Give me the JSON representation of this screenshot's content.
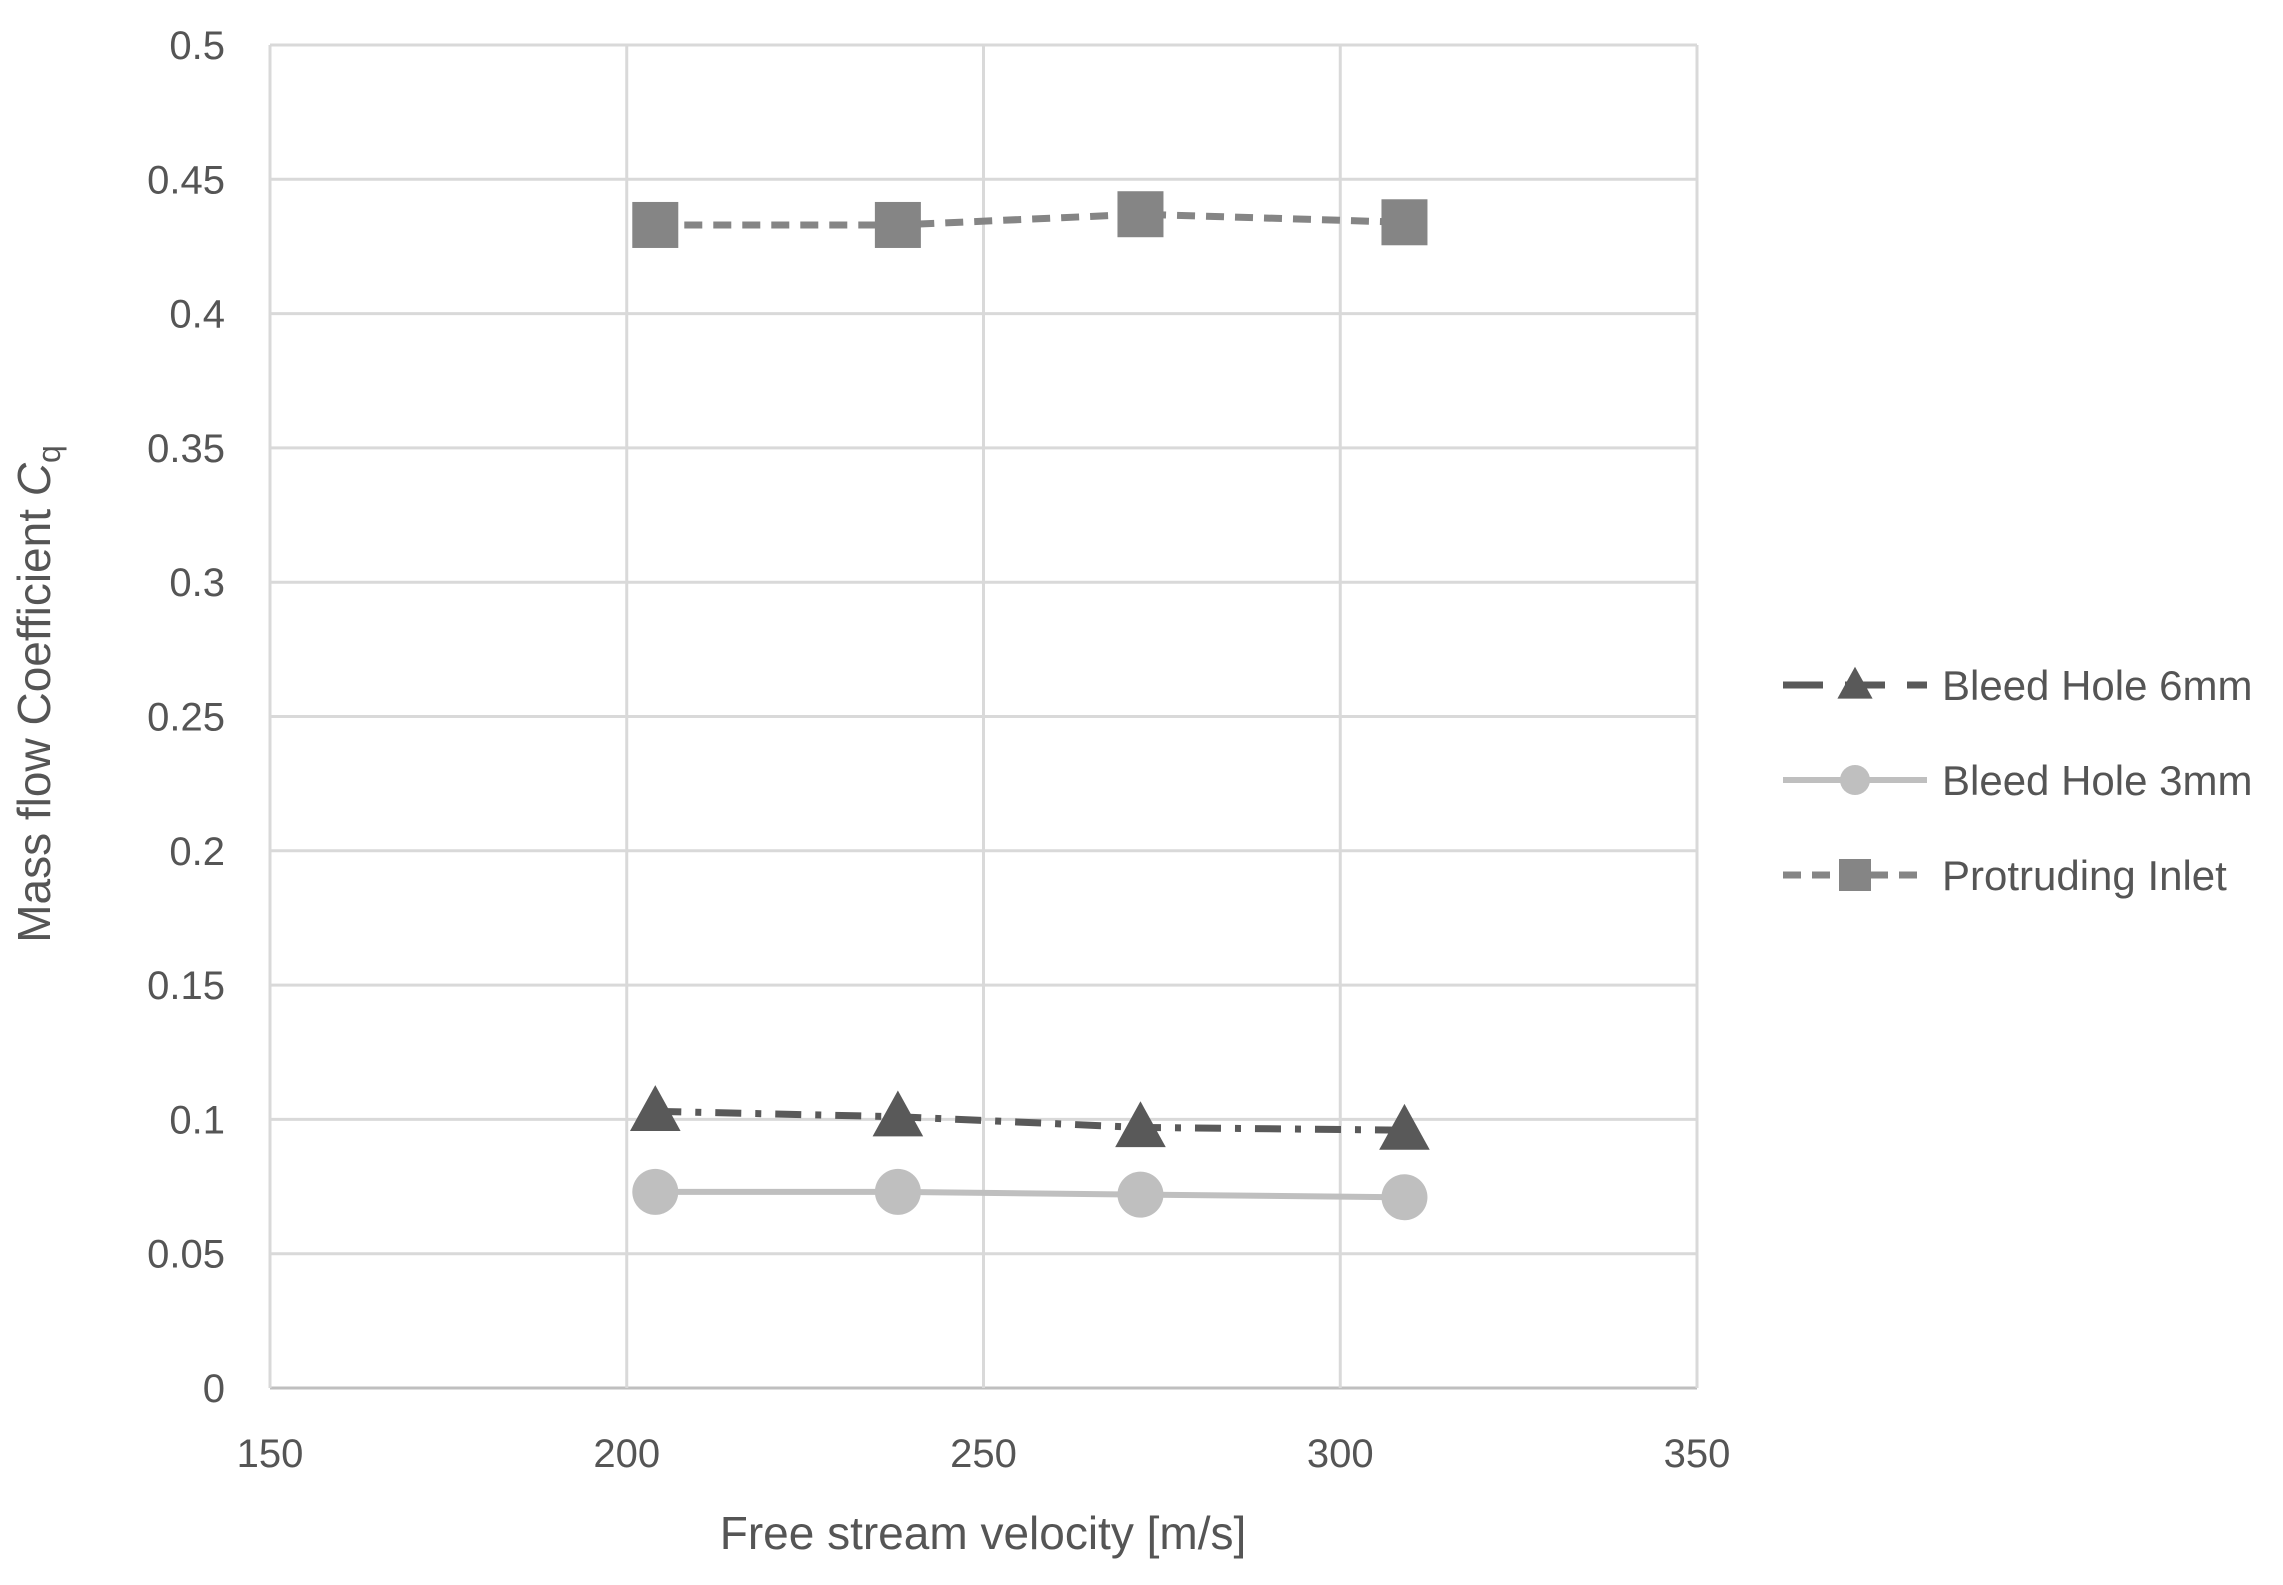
{
  "chart_data": {
    "type": "line",
    "title": "",
    "xlabel": "Free stream velocity [m/s]",
    "ylabel_prefix": "Mass flow Coefficient ",
    "ylabel_symbol": "C",
    "ylabel_subscript": "q",
    "xlim": [
      150,
      350
    ],
    "ylim": [
      0,
      0.5
    ],
    "xticks": [
      150,
      200,
      250,
      300,
      350
    ],
    "xtick_labels": [
      "150",
      "200",
      "250",
      "300",
      "350"
    ],
    "yticks": [
      0,
      0.05,
      0.1,
      0.15,
      0.2,
      0.25,
      0.3,
      0.35,
      0.4,
      0.45,
      0.5
    ],
    "ytick_labels": [
      "0",
      "0.05",
      "0.1",
      "0.15",
      "0.2",
      "0.25",
      "0.3",
      "0.35",
      "0.4",
      "0.45",
      "0.5"
    ],
    "grid": true,
    "legend_position": "right",
    "series": [
      {
        "name": "Bleed Hole 6mm",
        "x": [
          204,
          238,
          272,
          309
        ],
        "y": [
          0.103,
          0.101,
          0.097,
          0.096
        ],
        "marker": "triangle",
        "line_style": "dash-dot",
        "color": "#595959"
      },
      {
        "name": "Bleed Hole 3mm",
        "x": [
          204,
          238,
          272,
          309
        ],
        "y": [
          0.073,
          0.073,
          0.072,
          0.071
        ],
        "marker": "circle",
        "line_style": "solid",
        "color": "#bfbfbf"
      },
      {
        "name": "Protruding Inlet",
        "x": [
          204,
          238,
          272,
          309
        ],
        "y": [
          0.433,
          0.433,
          0.437,
          0.434
        ],
        "marker": "square",
        "line_style": "dashed",
        "color": "#858585"
      }
    ]
  },
  "colors": {
    "grid": "#d9d9d9",
    "axis": "#bfbfbf",
    "text": "#555555"
  }
}
